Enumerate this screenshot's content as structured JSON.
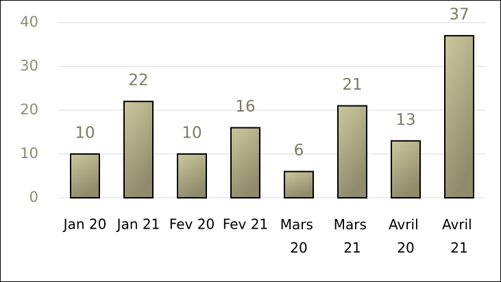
{
  "chart_data": {
    "type": "bar",
    "categories": [
      "Jan 20",
      "Jan 21",
      "Fev 20",
      "Fev 21",
      "Mars 20",
      "Mars 21",
      "Avril 20",
      "Avril 21"
    ],
    "values": [
      10,
      22,
      10,
      16,
      6,
      21,
      13,
      37
    ],
    "color": "#b5b187",
    "ylim": [
      0,
      40
    ],
    "yticks": [
      0,
      10,
      20,
      30,
      40
    ],
    "grid": true
  }
}
